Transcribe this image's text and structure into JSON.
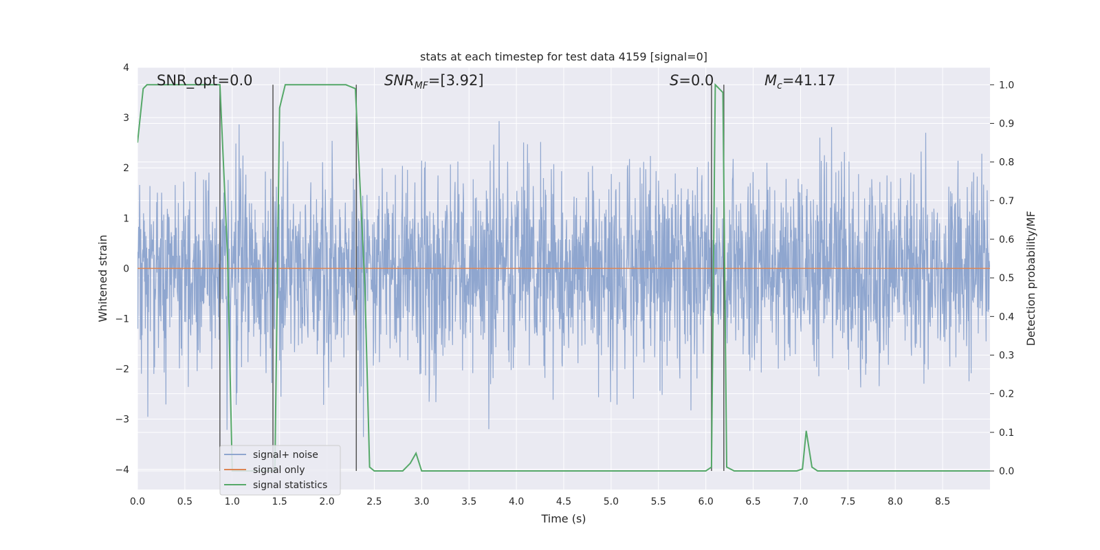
{
  "chart_data": {
    "type": "line",
    "title": "stats at each timestep for test data 4159 [signal=0]",
    "xlabel": "Time (s)",
    "ylabel": "Whitened strain",
    "ylabel_right": "Detection probability/MF",
    "xlim": [
      0.0,
      9.0
    ],
    "ylim": [
      -4.4,
      4.0
    ],
    "ylim_right": [
      -0.048,
      1.045
    ],
    "x_ticks": [
      0.0,
      0.5,
      1.0,
      1.5,
      2.0,
      2.5,
      3.0,
      3.5,
      4.0,
      4.5,
      5.0,
      5.5,
      6.0,
      6.5,
      7.0,
      7.5,
      8.0,
      8.5
    ],
    "x_tick_labels": [
      "0.0",
      "0.5",
      "1.0",
      "1.5",
      "2.0",
      "2.5",
      "3.0",
      "3.5",
      "4.0",
      "4.5",
      "5.0",
      "5.5",
      "6.0",
      "6.5",
      "7.0",
      "7.5",
      "8.0",
      "8.5"
    ],
    "y_ticks": [
      4,
      3,
      2,
      1,
      0,
      -1,
      -2,
      -3,
      -4
    ],
    "y_tick_labels": [
      "4",
      "3",
      "2",
      "1",
      "0",
      "−1",
      "−2",
      "−3",
      "−4"
    ],
    "y_right_ticks": [
      1.0,
      0.9,
      0.8,
      0.7,
      0.6,
      0.5,
      0.4,
      0.3,
      0.2,
      0.1,
      0.0
    ],
    "y_right_tick_labels": [
      "1.0",
      "0.9",
      "0.8",
      "0.7",
      "0.6",
      "0.5",
      "0.4",
      "0.3",
      "0.2",
      "0.1",
      "0.0"
    ],
    "grid": true,
    "legend_position": "lower-left",
    "colors": {
      "plot_bg": "#eaeaf2",
      "grid": "#ffffff",
      "noise": "#8fa6cf",
      "signal_only": "#dd8452",
      "stats": "#55a868",
      "vlines": "#555555"
    },
    "annotations": {
      "snr_opt": "SNR_opt=0.0",
      "snr_mf_main": "SNR",
      "snr_mf_sub": "MF",
      "snr_mf_value": "=[3.92]",
      "s_main": "S",
      "s_value": "=0.0",
      "mc_main": "M",
      "mc_sub": "c",
      "mc_value": "=41.17"
    },
    "series": [
      {
        "name": "signal+ noise",
        "kind": "noise",
        "mean": 0.0,
        "std": 1.0,
        "duration": 9.0
      },
      {
        "name": "signal only",
        "kind": "flat",
        "value": 0.0
      },
      {
        "name": "signal statistics",
        "kind": "line",
        "axis": "right",
        "x": [
          0.0,
          0.06,
          0.1,
          0.2,
          0.3,
          0.5,
          0.6,
          0.8,
          0.87,
          0.95,
          1.0,
          1.45,
          1.5,
          1.56,
          1.6,
          2.0,
          2.2,
          2.3,
          2.4,
          2.45,
          2.5,
          2.8,
          2.88,
          2.94,
          3.0,
          6.0,
          6.06,
          6.1,
          6.14,
          6.18,
          6.22,
          6.3,
          6.96,
          7.02,
          7.06,
          7.12,
          7.18,
          9.0
        ],
        "y": [
          0.85,
          0.99,
          1.0,
          1.0,
          1.0,
          1.0,
          1.0,
          1.0,
          1.0,
          0.56,
          0.0,
          0.0,
          0.94,
          1.0,
          1.0,
          1.0,
          1.0,
          0.99,
          0.48,
          0.01,
          0.0,
          0.0,
          0.02,
          0.046,
          0.0,
          0.0,
          0.01,
          1.0,
          0.99,
          0.98,
          0.01,
          0.0,
          0.0,
          0.005,
          0.104,
          0.01,
          0.0,
          0.0
        ]
      }
    ],
    "vlines_x": [
      0.87,
      1.43,
      2.31,
      6.06,
      6.19
    ]
  },
  "legend": {
    "items": [
      "signal+ noise",
      "signal only",
      "signal statistics"
    ]
  }
}
